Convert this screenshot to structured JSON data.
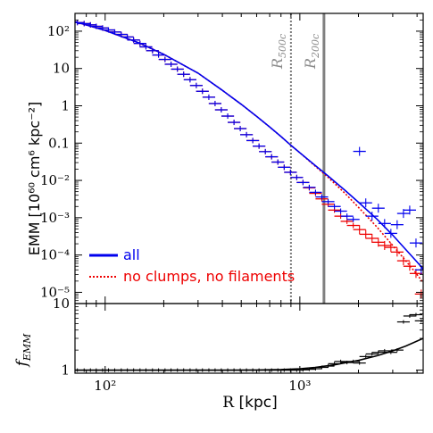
{
  "chart_data": {
    "type": "line",
    "xscale": "log",
    "yscale": "log",
    "xlim": [
      70,
      4300
    ],
    "ylabel": "EMM  [10⁶⁰ cm⁶ kpc⁻²]",
    "xlabel_main": "R ",
    "xlabel_unit": "[kpc]",
    "main_panel": {
      "ylim": [
        5e-06,
        300
      ],
      "yticks": [
        {
          "value": 100,
          "label": "10²"
        },
        {
          "value": 10,
          "label": "10"
        },
        {
          "value": 1,
          "label": "1"
        },
        {
          "value": 0.1,
          "label": "0.1"
        },
        {
          "value": 0.01,
          "label": "10⁻²"
        },
        {
          "value": 0.001,
          "label": "10⁻³"
        },
        {
          "value": 0.0001,
          "label": "10⁻⁴"
        },
        {
          "value": 1e-05,
          "label": "10⁻⁵"
        }
      ],
      "vlines": [
        {
          "name": "R500c",
          "x": 900,
          "style": "dotted",
          "color": "#7a7a7a",
          "label_main": "R",
          "label_sub": "500c"
        },
        {
          "name": "R200c",
          "x": 1330,
          "style": "solid",
          "color": "#808080",
          "label_main": "R",
          "label_sub": "200c"
        }
      ],
      "series": [
        {
          "name": "all",
          "color": "#0000ee",
          "style": "solid",
          "line": {
            "x": [
              70,
              100,
              150,
              200,
              300,
              400,
              500,
              600,
              700,
              800,
              900,
              1000,
              1200,
              1400,
              1700,
              2000,
              2500,
              3000,
              3500,
              4000,
              4300
            ],
            "y": [
              180,
              105,
              48,
              24,
              7.5,
              2.6,
              1.1,
              0.52,
              0.27,
              0.15,
              0.087,
              0.055,
              0.025,
              0.013,
              0.0055,
              0.0026,
              0.0009,
              0.00034,
              0.00014,
              6.5e-05,
              4.2e-05
            ]
          },
          "points": {
            "x": [
              72,
              78,
              84,
              90,
              97,
              104,
              112,
              121,
              130,
              140,
              151,
              162,
              175,
              188,
              203,
              218,
              235,
              253,
              273,
              294,
              316,
              341,
              367,
              395,
              426,
              459,
              494,
              532,
              573,
              617,
              665,
              716,
              771,
              831,
              895,
              964,
              1038,
              1118,
              1204,
              1297,
              1397,
              1505,
              1621,
              1746,
              1880,
              2025,
              2181,
              2349,
              2530,
              2725,
              2935,
              3161,
              3405,
              3667,
              3950,
              4200
            ],
            "y": [
              170,
              160,
              148,
              135,
              122,
              108,
              95,
              82,
              70,
              58,
              47,
              38,
              30,
              23,
              17.5,
              13,
              9.6,
              7,
              5,
              3.5,
              2.45,
              1.7,
              1.15,
              0.78,
              0.53,
              0.36,
              0.245,
              0.168,
              0.117,
              0.083,
              0.059,
              0.043,
              0.031,
              0.0225,
              0.0165,
              0.012,
              0.0088,
              0.0065,
              0.0048,
              0.0036,
              0.0027,
              0.002,
              0.0015,
              0.0011,
              0.0009,
              0.06,
              0.0025,
              0.0011,
              0.0018,
              0.0007,
              0.00038,
              0.00065,
              0.0013,
              0.0016,
              0.00021,
              4e-05
            ]
          }
        },
        {
          "name": "no clumps, no filaments",
          "color": "#ee0000",
          "style": "dotted",
          "line": {
            "x": [
              70,
              100,
              150,
              200,
              300,
              400,
              500,
              600,
              700,
              800,
              900,
              1000,
              1200,
              1400,
              1700,
              2000,
              2500,
              3000,
              3500,
              4000,
              4300
            ],
            "y": [
              180,
              105,
              48,
              24,
              7.5,
              2.6,
              1.1,
              0.52,
              0.27,
              0.15,
              0.087,
              0.055,
              0.024,
              0.012,
              0.0046,
              0.0019,
              0.00055,
              0.00018,
              7e-05,
              3e-05,
              1.8e-05
            ]
          },
          "points": {
            "x": [
              72,
              78,
              84,
              90,
              97,
              104,
              112,
              121,
              130,
              140,
              151,
              162,
              175,
              188,
              203,
              218,
              235,
              253,
              273,
              294,
              316,
              341,
              367,
              395,
              426,
              459,
              494,
              532,
              573,
              617,
              665,
              716,
              771,
              831,
              895,
              964,
              1038,
              1118,
              1204,
              1297,
              1397,
              1505,
              1621,
              1746,
              1880,
              2025,
              2181,
              2349,
              2530,
              2725,
              2935,
              3161,
              3405,
              3667,
              3950,
              4200
            ],
            "y": [
              170,
              160,
              148,
              135,
              122,
              108,
              95,
              82,
              70,
              58,
              47,
              38,
              30,
              23,
              17.5,
              13,
              9.6,
              7,
              5,
              3.5,
              2.45,
              1.7,
              1.15,
              0.78,
              0.53,
              0.36,
              0.245,
              0.168,
              0.117,
              0.083,
              0.059,
              0.043,
              0.031,
              0.0225,
              0.0165,
              0.012,
              0.0088,
              0.0063,
              0.0045,
              0.0032,
              0.0023,
              0.0016,
              0.0011,
              0.0008,
              0.00062,
              0.00048,
              0.00036,
              0.00028,
              0.00022,
              0.00018,
              0.00016,
              0.00012,
              7e-05,
              5e-05,
              3.2e-05,
              9e-06
            ]
          }
        }
      ]
    },
    "ratio_panel": {
      "ylabel_main": "f",
      "ylabel_sub": "EMM",
      "yscale": "log",
      "ylim": [
        0.9,
        10
      ],
      "yticks": [
        {
          "value": 10,
          "label": "10"
        },
        {
          "value": 1,
          "label": "1"
        }
      ],
      "line": {
        "x": [
          70,
          200,
          400,
          600,
          800,
          1000,
          1200,
          1500,
          2000,
          2500,
          3000,
          3500,
          4300
        ],
        "y": [
          1.0,
          1.0,
          1.0,
          1.005,
          1.02,
          1.05,
          1.1,
          1.2,
          1.4,
          1.65,
          1.95,
          2.3,
          3.0
        ]
      },
      "points": {
        "x": [
          72,
          78,
          84,
          90,
          97,
          104,
          112,
          121,
          130,
          140,
          151,
          162,
          175,
          188,
          203,
          218,
          235,
          253,
          273,
          294,
          316,
          341,
          367,
          395,
          426,
          459,
          494,
          532,
          573,
          617,
          665,
          716,
          771,
          831,
          895,
          964,
          1038,
          1118,
          1204,
          1297,
          1397,
          1505,
          1621,
          1746,
          1880,
          2025,
          2181,
          2349,
          2530,
          2725,
          2935,
          3161,
          3405,
          3667,
          3950,
          4200
        ],
        "y": [
          1.0,
          1.0,
          1.0,
          1.0,
          1.0,
          1.0,
          1.0,
          1.0,
          1.0,
          1.0,
          1.0,
          1.0,
          1.0,
          1.0,
          1.0,
          1.0,
          1.0,
          1.0,
          1.0,
          1.0,
          1.0,
          1.0,
          1.0,
          1.0,
          1.0,
          1.0,
          1.0,
          1.0,
          1.0,
          1.0,
          1.0,
          1.0,
          1.0,
          1.0,
          1.0,
          1.0,
          1.01,
          1.03,
          1.05,
          1.1,
          1.15,
          1.25,
          1.35,
          1.3,
          1.35,
          1.28,
          1.6,
          1.75,
          1.85,
          1.95,
          1.85,
          2.0,
          5.3,
          6.5,
          6.8,
          5.5
        ]
      }
    },
    "legend": {
      "position": "lower-left",
      "entries": [
        {
          "label": "all",
          "color": "#0000ee",
          "style": "solid"
        },
        {
          "label": "no clumps, no filaments",
          "color": "#ee0000",
          "style": "dotted"
        }
      ]
    },
    "xticks": [
      {
        "value": 100,
        "label": "10²"
      },
      {
        "value": 1000,
        "label": "10³"
      }
    ]
  }
}
